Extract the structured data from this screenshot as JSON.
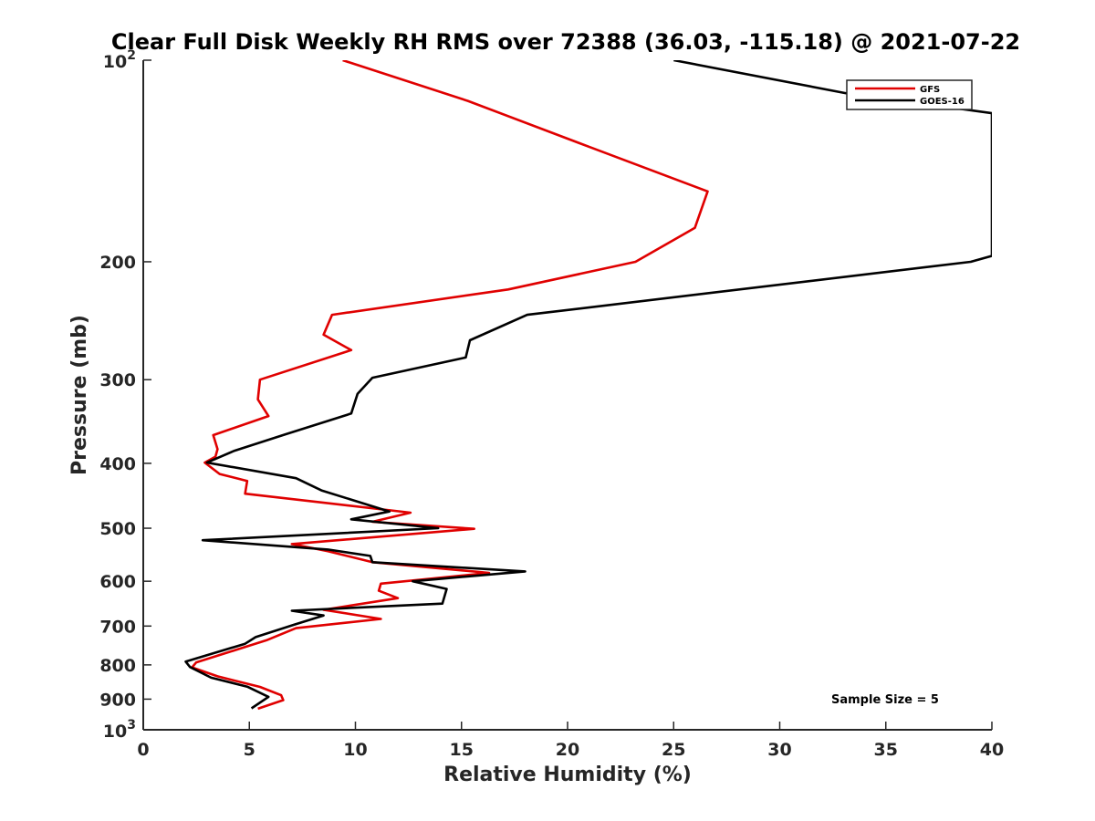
{
  "chart_data": {
    "type": "line",
    "title": "Clear Full Disk Weekly RH RMS over 72388 (36.03, -115.18) @ 2021-07-22",
    "xlabel": "Relative Humidity (%)",
    "ylabel": "Pressure (mb)",
    "xlim": [
      0,
      40
    ],
    "ylim": [
      100,
      1000
    ],
    "y_scale": "log",
    "y_reversed": true,
    "grid": false,
    "legend_position": "top-right",
    "x_ticks": [
      "0",
      "5",
      "10",
      "15",
      "20",
      "25",
      "30",
      "35",
      "40"
    ],
    "y_ticks": [
      {
        "value": 100,
        "base": "10",
        "exp": "2"
      },
      {
        "value": 200,
        "label": "200"
      },
      {
        "value": 300,
        "label": "300"
      },
      {
        "value": 400,
        "label": "400"
      },
      {
        "value": 500,
        "label": "500"
      },
      {
        "value": 600,
        "label": "600"
      },
      {
        "value": 700,
        "label": "700"
      },
      {
        "value": 800,
        "label": "800"
      },
      {
        "value": 900,
        "label": "900"
      },
      {
        "value": 1000,
        "base": "10",
        "exp": "3"
      }
    ],
    "annotation": "Sample Size = 5",
    "series": [
      {
        "name": "GFS",
        "color": "#e00000",
        "points": [
          [
            9.4,
            100
          ],
          [
            15.3,
            115
          ],
          [
            21.1,
            135
          ],
          [
            26.6,
            157
          ],
          [
            26.0,
            178
          ],
          [
            23.2,
            200
          ],
          [
            17.2,
            220
          ],
          [
            8.9,
            240
          ],
          [
            8.5,
            257
          ],
          [
            9.8,
            271
          ],
          [
            5.5,
            300
          ],
          [
            5.4,
            321
          ],
          [
            5.9,
            340
          ],
          [
            3.3,
            363
          ],
          [
            3.5,
            381
          ],
          [
            3.4,
            391
          ],
          [
            2.9,
            399
          ],
          [
            3.6,
            415
          ],
          [
            4.9,
            425
          ],
          [
            4.8,
            444
          ],
          [
            12.6,
            474
          ],
          [
            10.8,
            489
          ],
          [
            15.6,
            501
          ],
          [
            7.0,
            528
          ],
          [
            8.7,
            541
          ],
          [
            10.8,
            562
          ],
          [
            16.3,
            583
          ],
          [
            11.2,
            605
          ],
          [
            11.1,
            620
          ],
          [
            12.0,
            636
          ],
          [
            8.5,
            662
          ],
          [
            11.2,
            683
          ],
          [
            7.2,
            705
          ],
          [
            5.8,
            735
          ],
          [
            2.5,
            793
          ],
          [
            2.3,
            807
          ],
          [
            3.5,
            832
          ],
          [
            5.5,
            863
          ],
          [
            6.5,
            888
          ],
          [
            6.6,
            903
          ],
          [
            5.4,
            930
          ]
        ]
      },
      {
        "name": "GOES-16",
        "color": "#000000",
        "points": [
          [
            25.0,
            100
          ],
          [
            33.1,
            112
          ],
          [
            40.0,
            120
          ],
          [
            40.0,
            196
          ],
          [
            39.0,
            200
          ],
          [
            18.1,
            240
          ],
          [
            15.4,
            262
          ],
          [
            15.2,
            278
          ],
          [
            10.8,
            298
          ],
          [
            10.1,
            315
          ],
          [
            9.8,
            337
          ],
          [
            6.7,
            362
          ],
          [
            4.3,
            383
          ],
          [
            3.0,
            399
          ],
          [
            7.2,
            421
          ],
          [
            8.4,
            439
          ],
          [
            11.6,
            472
          ],
          [
            9.8,
            485
          ],
          [
            13.9,
            500
          ],
          [
            2.8,
            521
          ],
          [
            8.7,
            538
          ],
          [
            10.7,
            550
          ],
          [
            10.8,
            562
          ],
          [
            18.0,
            580
          ],
          [
            12.7,
            600
          ],
          [
            14.3,
            616
          ],
          [
            14.1,
            648
          ],
          [
            7.0,
            664
          ],
          [
            8.5,
            675
          ],
          [
            7.1,
            697
          ],
          [
            5.3,
            727
          ],
          [
            4.8,
            744
          ],
          [
            2.0,
            791
          ],
          [
            2.2,
            806
          ],
          [
            3.2,
            836
          ],
          [
            4.9,
            862
          ],
          [
            5.9,
            893
          ],
          [
            5.1,
            929
          ]
        ]
      }
    ]
  }
}
